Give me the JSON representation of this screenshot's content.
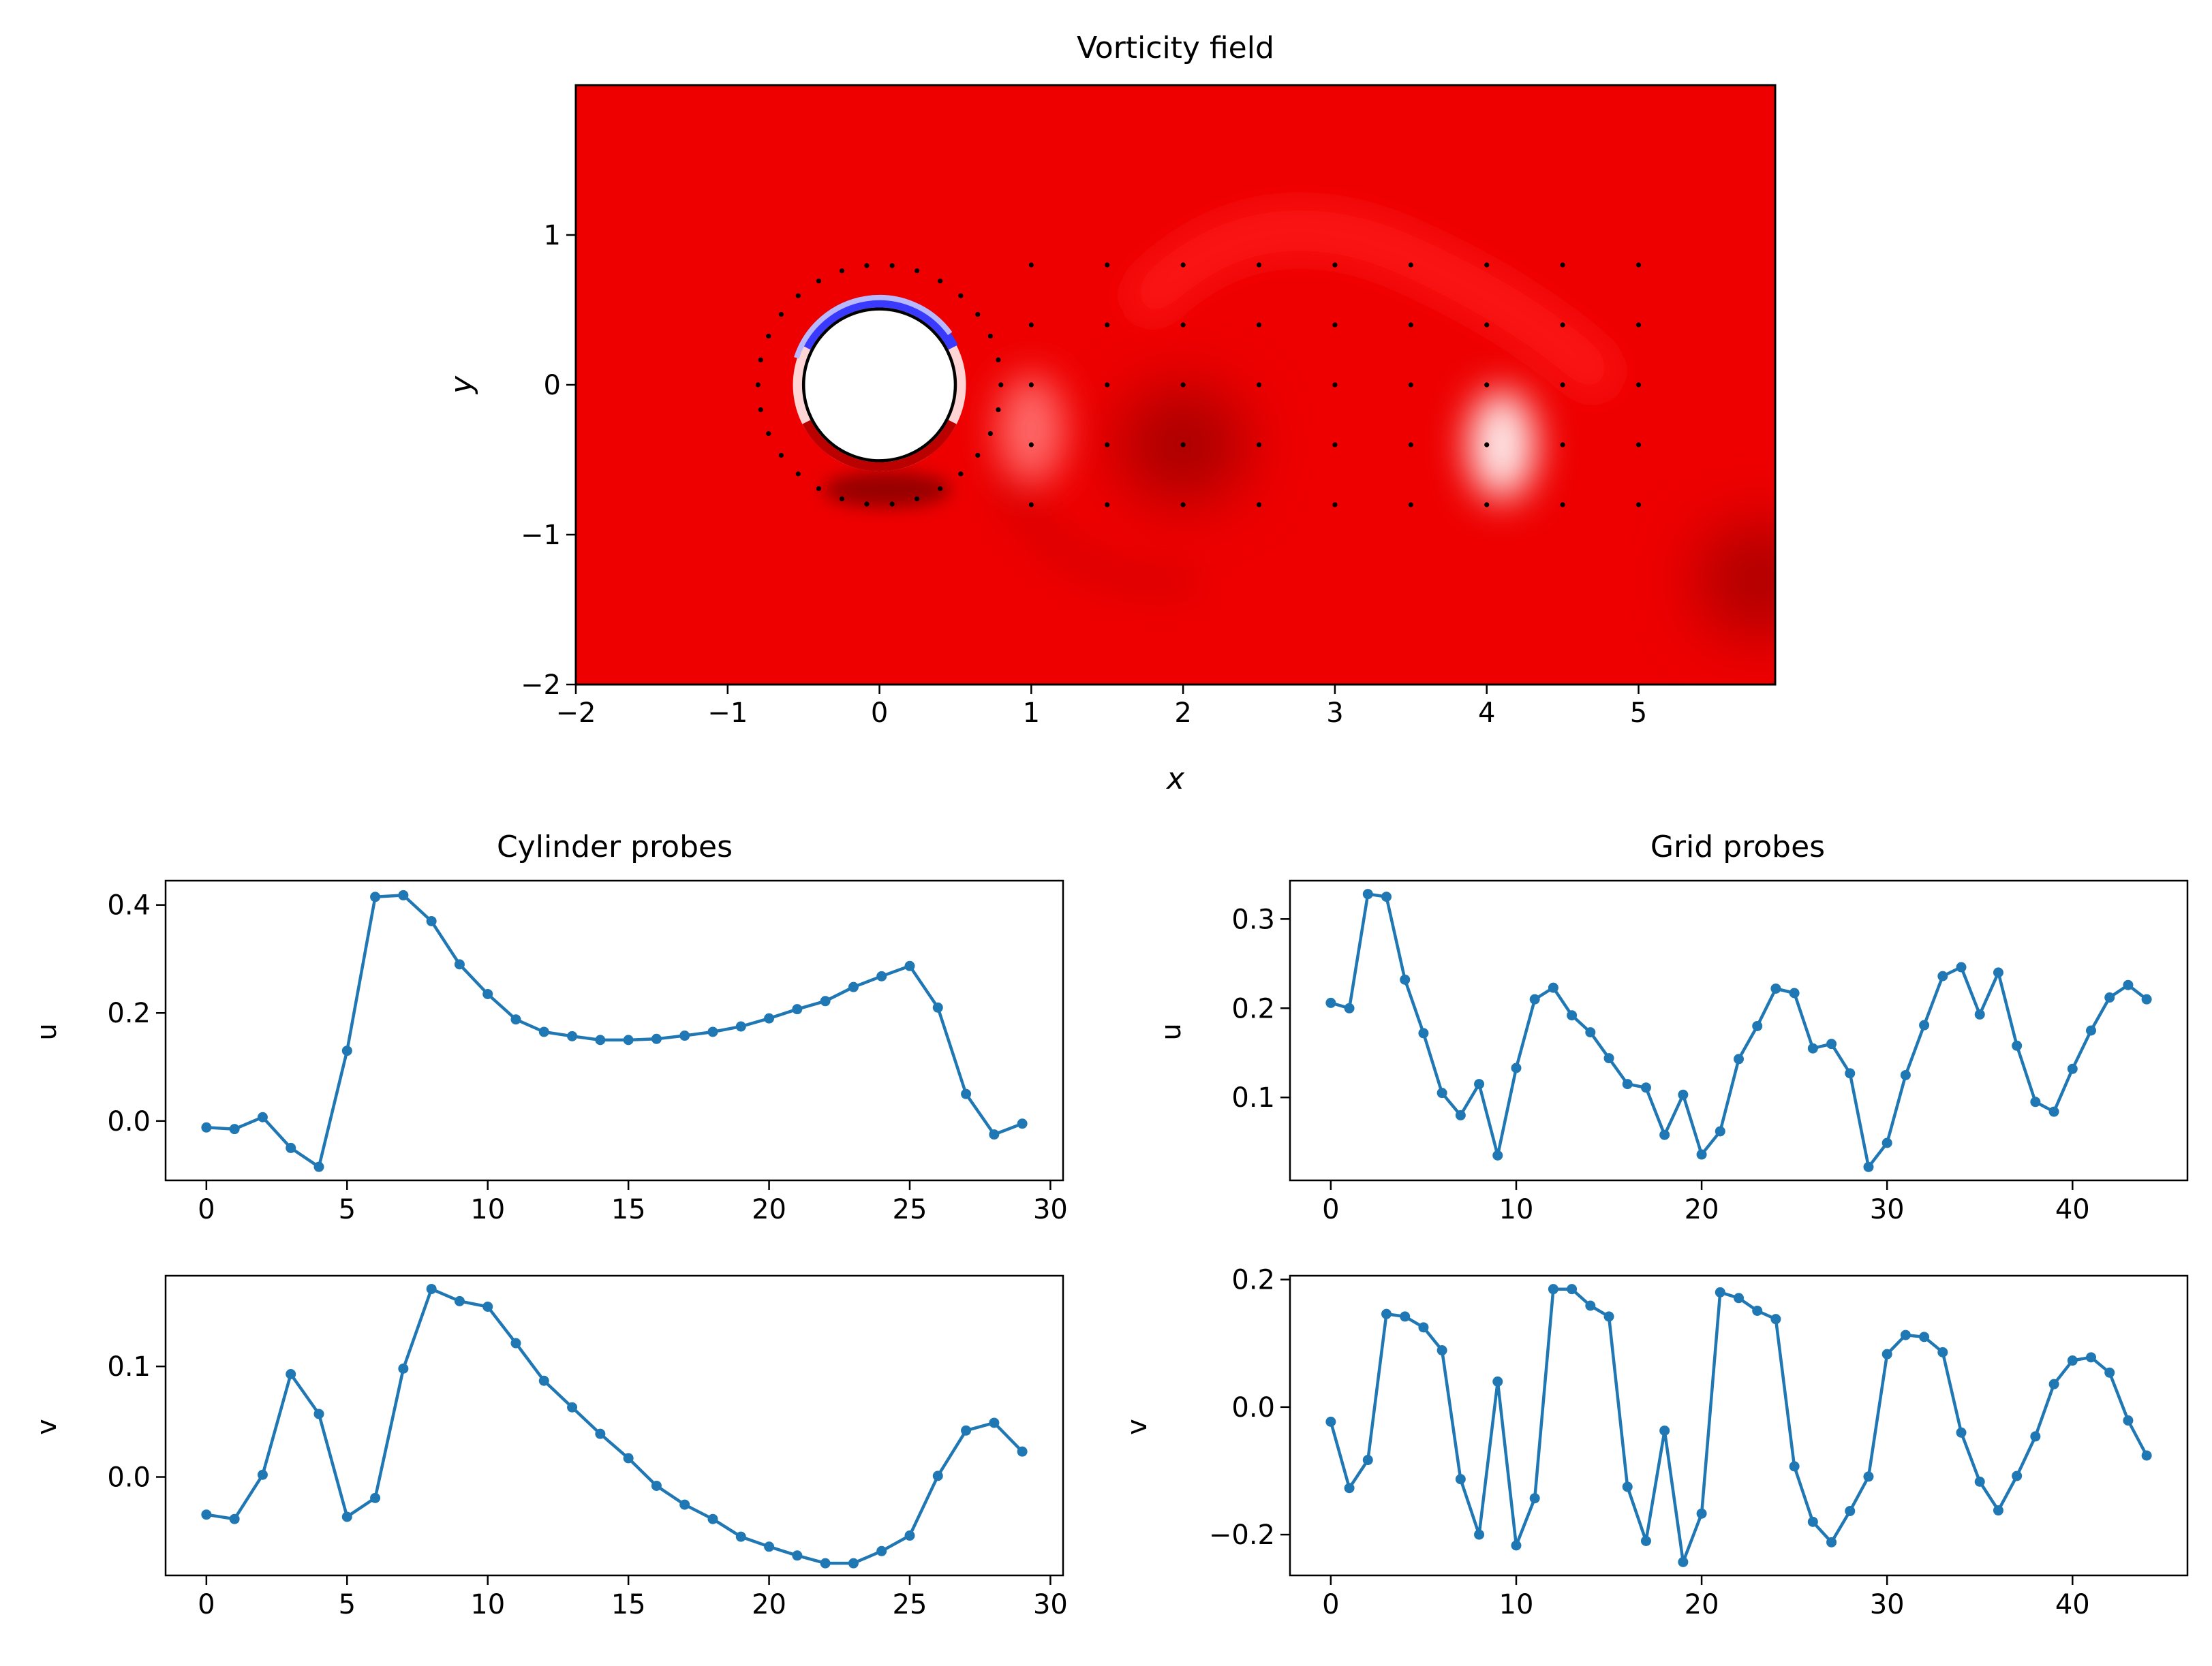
{
  "chart_data": [
    {
      "type": "heatmap",
      "title": "Vorticity field",
      "xlabel": "x",
      "ylabel": "y",
      "xlim": [
        -2,
        5.9
      ],
      "ylim": [
        -2,
        2
      ],
      "xticks": [
        -2,
        -1,
        0,
        1,
        2,
        3,
        4,
        5
      ],
      "yticks": [
        -2,
        -1,
        0,
        1
      ],
      "xtick_labels": [
        "−2",
        "−1",
        "0",
        "1",
        "2",
        "3",
        "4",
        "5"
      ],
      "ytick_labels": [
        "−2",
        "−1",
        "0",
        "1"
      ],
      "colormap": "bwr",
      "background_color": "#ee0000",
      "cylinder": {
        "center": [
          0,
          0
        ],
        "radius": 0.5
      },
      "cylinder_probes": {
        "count": 30,
        "radius": 0.8
      },
      "grid_probes": {
        "x": [
          1,
          1.5,
          2,
          2.5,
          3,
          3.5,
          4,
          4.5,
          5
        ],
        "y": [
          0.8,
          0.4,
          0,
          -0.4,
          -0.8
        ]
      },
      "vortices": [
        {
          "x": 2.0,
          "y": -0.4,
          "strength": "strong",
          "color": "#aa0000"
        },
        {
          "x": 5.8,
          "y": -1.3,
          "strength": "strong",
          "color": "#b00000"
        },
        {
          "x": 4.1,
          "y": -0.4,
          "strength": "weak",
          "color": "#ffeaea"
        },
        {
          "x": 1.0,
          "y": -0.3,
          "strength": "weak",
          "color": "#ff6a6a"
        }
      ]
    },
    {
      "type": "line",
      "title": "Cylinder probes",
      "ylabel": "u",
      "x": [
        0,
        1,
        2,
        3,
        4,
        5,
        6,
        7,
        8,
        9,
        10,
        11,
        12,
        13,
        14,
        15,
        16,
        17,
        18,
        19,
        20,
        21,
        22,
        23,
        24,
        25,
        26,
        27,
        28,
        29
      ],
      "values": [
        -0.012,
        -0.015,
        0.007,
        -0.05,
        -0.085,
        0.13,
        0.415,
        0.418,
        0.37,
        0.29,
        0.235,
        0.188,
        0.165,
        0.157,
        0.15,
        0.15,
        0.152,
        0.158,
        0.165,
        0.175,
        0.19,
        0.207,
        0.222,
        0.248,
        0.268,
        0.287,
        0.21,
        0.05,
        -0.025,
        -0.005
      ],
      "xlim": [
        -1.45,
        30.45
      ],
      "ylim": [
        -0.11,
        0.445
      ],
      "xticks": [
        0,
        5,
        10,
        15,
        20,
        25,
        30
      ],
      "yticks": [
        0.0,
        0.2,
        0.4
      ],
      "ytick_labels": [
        "0.0",
        "0.2",
        "0.4"
      ],
      "color": "#1f77b4"
    },
    {
      "type": "line",
      "ylabel": "v",
      "x": [
        0,
        1,
        2,
        3,
        4,
        5,
        6,
        7,
        8,
        9,
        10,
        11,
        12,
        13,
        14,
        15,
        16,
        17,
        18,
        19,
        20,
        21,
        22,
        23,
        24,
        25,
        26,
        27,
        28,
        29
      ],
      "values": [
        -0.034,
        -0.038,
        0.002,
        0.093,
        0.057,
        -0.036,
        -0.019,
        0.098,
        0.17,
        0.159,
        0.154,
        0.121,
        0.087,
        0.063,
        0.039,
        0.017,
        -0.008,
        -0.025,
        -0.038,
        -0.054,
        -0.063,
        -0.071,
        -0.078,
        -0.078,
        -0.067,
        -0.053,
        0.001,
        0.042,
        0.049,
        0.023
      ],
      "xlim": [
        -1.45,
        30.45
      ],
      "ylim": [
        -0.089,
        0.182
      ],
      "xticks": [
        0,
        5,
        10,
        15,
        20,
        25,
        30
      ],
      "yticks": [
        0.0,
        0.1
      ],
      "ytick_labels": [
        "0.0",
        "0.1"
      ],
      "color": "#1f77b4"
    },
    {
      "type": "line",
      "title": "Grid probes",
      "ylabel": "u",
      "x": [
        0,
        1,
        2,
        3,
        4,
        5,
        6,
        7,
        8,
        9,
        10,
        11,
        12,
        13,
        14,
        15,
        16,
        17,
        18,
        19,
        20,
        21,
        22,
        23,
        24,
        25,
        26,
        27,
        28,
        29,
        30,
        31,
        32,
        33,
        34,
        35,
        36,
        37,
        38,
        39,
        40,
        41,
        42,
        43,
        44
      ],
      "values": [
        0.206,
        0.2,
        0.328,
        0.325,
        0.232,
        0.172,
        0.105,
        0.08,
        0.115,
        0.035,
        0.133,
        0.21,
        0.223,
        0.192,
        0.173,
        0.144,
        0.115,
        0.111,
        0.058,
        0.103,
        0.036,
        0.062,
        0.143,
        0.18,
        0.222,
        0.217,
        0.155,
        0.16,
        0.127,
        0.022,
        0.049,
        0.125,
        0.181,
        0.236,
        0.246,
        0.193,
        0.24,
        0.158,
        0.095,
        0.084,
        0.132,
        0.175,
        0.212,
        0.226,
        0.21
      ],
      "xlim": [
        -2.2,
        46.2
      ],
      "ylim": [
        0.007,
        0.343
      ],
      "xticks": [
        0,
        10,
        20,
        30,
        40
      ],
      "yticks": [
        0.1,
        0.2,
        0.3
      ],
      "ytick_labels": [
        "0.1",
        "0.2",
        "0.3"
      ],
      "color": "#1f77b4"
    },
    {
      "type": "line",
      "ylabel": "v",
      "x": [
        0,
        1,
        2,
        3,
        4,
        5,
        6,
        7,
        8,
        9,
        10,
        11,
        12,
        13,
        14,
        15,
        16,
        17,
        18,
        19,
        20,
        21,
        22,
        23,
        24,
        25,
        26,
        27,
        28,
        29,
        30,
        31,
        32,
        33,
        34,
        35,
        36,
        37,
        38,
        39,
        40,
        41,
        42,
        43,
        44
      ],
      "values": [
        -0.023,
        -0.127,
        -0.083,
        0.146,
        0.142,
        0.125,
        0.089,
        -0.113,
        -0.2,
        0.04,
        -0.217,
        -0.143,
        0.185,
        0.185,
        0.159,
        0.142,
        -0.125,
        -0.21,
        -0.037,
        -0.243,
        -0.167,
        0.18,
        0.171,
        0.151,
        0.138,
        -0.093,
        -0.18,
        -0.212,
        -0.163,
        -0.109,
        0.083,
        0.113,
        0.11,
        0.086,
        -0.04,
        -0.117,
        -0.162,
        -0.108,
        -0.046,
        0.036,
        0.073,
        0.078,
        0.054,
        -0.021,
        -0.076
      ],
      "xlim": [
        -2.2,
        46.2
      ],
      "ylim": [
        -0.264,
        0.206
      ],
      "xticks": [
        0,
        10,
        20,
        30,
        40
      ],
      "yticks": [
        -0.2,
        0.0,
        0.2
      ],
      "ytick_labels": [
        "−0.2",
        "0.0",
        "0.2"
      ],
      "color": "#1f77b4"
    }
  ]
}
